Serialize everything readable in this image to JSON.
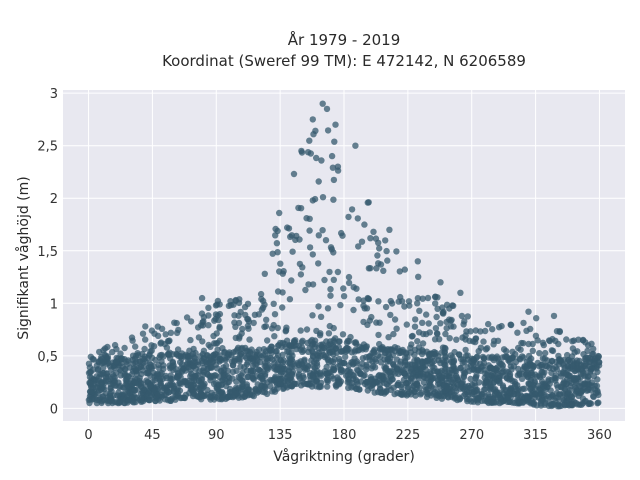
{
  "chart_data": {
    "type": "scatter",
    "title_lines": [
      "År 1979 - 2019",
      "Koordinat (Sweref 99 TM): E 472142, N 6206589"
    ],
    "xlabel": "Vågriktning (grader)",
    "ylabel": "Signifikant våghöjd (m)",
    "xlim": [
      -18,
      378
    ],
    "ylim": [
      -0.12,
      3.03
    ],
    "xticks": [
      0,
      45,
      90,
      135,
      180,
      225,
      270,
      315,
      360
    ],
    "xtick_labels": [
      "0",
      "45",
      "90",
      "135",
      "180",
      "225",
      "270",
      "315",
      "360"
    ],
    "yticks": [
      0,
      0.5,
      1,
      1.5,
      2,
      2.5,
      3
    ],
    "ytick_labels": [
      "0",
      "0,5",
      "1",
      "1,5",
      "2",
      "2,5",
      "3"
    ],
    "grid": true,
    "colors": {
      "marker": "#35596e",
      "plot_background": "#e8e8f0",
      "grid": "#ffffff"
    },
    "envelope": {
      "x": [
        0,
        15,
        30,
        45,
        60,
        75,
        90,
        105,
        120,
        130,
        140,
        150,
        160,
        165,
        170,
        180,
        190,
        200,
        210,
        225,
        240,
        255,
        270,
        285,
        300,
        315,
        330,
        345,
        360
      ],
      "max": [
        0.6,
        0.62,
        0.68,
        0.78,
        0.82,
        0.95,
        1.02,
        1.05,
        1.2,
        1.6,
        2.2,
        2.55,
        2.8,
        2.9,
        2.75,
        2.5,
        2.2,
        1.9,
        1.65,
        1.35,
        1.2,
        1.0,
        0.85,
        0.8,
        0.8,
        0.9,
        0.78,
        0.7,
        0.6
      ],
      "min": [
        0.05,
        0.05,
        0.05,
        0.07,
        0.07,
        0.08,
        0.08,
        0.1,
        0.12,
        0.15,
        0.2,
        0.22,
        0.2,
        0.2,
        0.2,
        0.2,
        0.18,
        0.15,
        0.14,
        0.12,
        0.1,
        0.08,
        0.06,
        0.05,
        0.05,
        0.03,
        0.02,
        0.03,
        0.05
      ]
    },
    "outliers": [
      {
        "x": 165,
        "y": 2.9
      },
      {
        "x": 168,
        "y": 2.85
      },
      {
        "x": 158,
        "y": 2.75
      },
      {
        "x": 174,
        "y": 2.7
      },
      {
        "x": 150,
        "y": 2.45
      },
      {
        "x": 188,
        "y": 2.5
      },
      {
        "x": 212,
        "y": 1.7
      },
      {
        "x": 232,
        "y": 1.4
      },
      {
        "x": 248,
        "y": 1.2
      },
      {
        "x": 262,
        "y": 1.1
      },
      {
        "x": 80,
        "y": 1.05
      },
      {
        "x": 100,
        "y": 1.02
      },
      {
        "x": 40,
        "y": 0.78
      },
      {
        "x": 328,
        "y": 0.88
      },
      {
        "x": 310,
        "y": 0.92
      },
      {
        "x": 352,
        "y": 0.6
      }
    ]
  }
}
